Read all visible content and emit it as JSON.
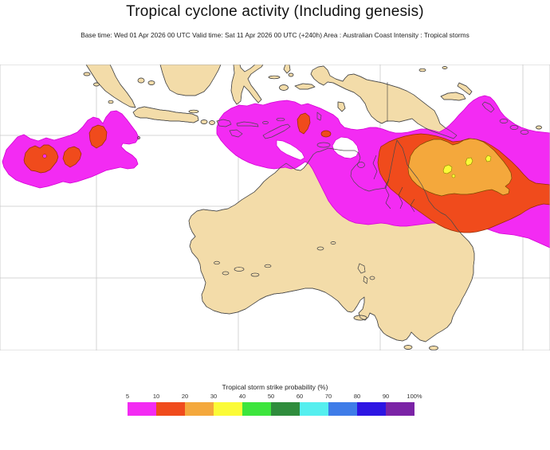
{
  "header": {
    "title": "Tropical cyclone activity (Including genesis)",
    "subtitle": "Base time: Wed 01 Apr 2026 00 UTC Valid time: Sat 11 Apr 2026 00 UTC (+240h) Area : Australian Coast Intensity : Tropical storms"
  },
  "legend": {
    "title": "Tropical storm strike probability (%)",
    "tick_labels": [
      "5",
      "10",
      "20",
      "30",
      "40",
      "50",
      "60",
      "70",
      "80",
      "90",
      "100%"
    ],
    "colors": [
      "#f32bf3",
      "#f04b1c",
      "#f4a83c",
      "#fbfb37",
      "#3de53d",
      "#2f8c3c",
      "#55efef",
      "#3e7ce8",
      "#2d15e3",
      "#7b23a6"
    ]
  },
  "map": {
    "sea_color": "#ffffff",
    "land_color": "#f3dca9",
    "coast_color": "#4a4a4a",
    "grid_color": "#c9c9c9",
    "contour_levels": [
      {
        "range": "5-10%",
        "color": "#f32bf3"
      },
      {
        "range": "10-20%",
        "color": "#f04b1c"
      },
      {
        "range": "20-30%",
        "color": "#f4a83c"
      },
      {
        "range": "30-40%",
        "color": "#fbfb37"
      }
    ],
    "regions": [
      {
        "name": "Indian Ocean system southwest of Java",
        "max_level": "10-20%"
      },
      {
        "name": "Timor / Banda Sea system",
        "max_level": "10-20%"
      },
      {
        "name": "Coral Sea / Queensland coast system",
        "max_level": "30-40%"
      }
    ]
  }
}
